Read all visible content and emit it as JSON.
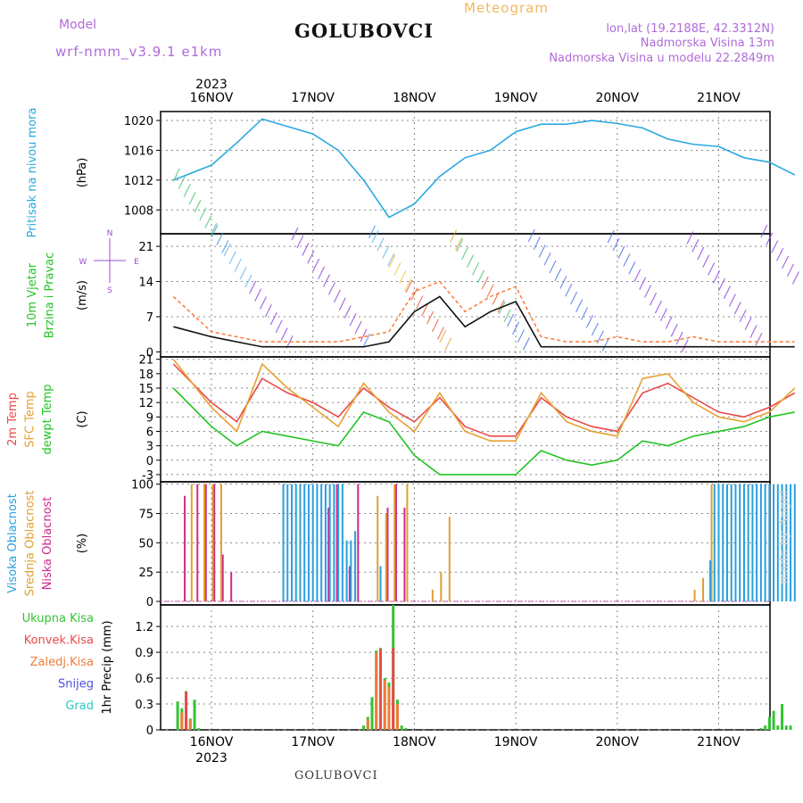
{
  "header": {
    "model_label": "Model",
    "model_name": "wrf-nmm_v3.9.1 e1km",
    "station": "GOLUBOVCI",
    "product": "Meteogram",
    "coords": "lon,lat (19.2188E, 42.3312N)",
    "elevation": "Nadmorska Visina 13m",
    "model_elevation": "Nadmorska Visina u modelu 22.2849m"
  },
  "footer": {
    "station": "GOLUBOVCI",
    "credit": "made by Angel"
  },
  "colors": {
    "pressure": "#2aa9e0",
    "wind_mean": "#111111",
    "wind_gust": "#ff8040",
    "t2m": "#e84a4a",
    "sfc": "#e8a030",
    "dewpt": "#22c422",
    "cloud_high": "#2a9fdc",
    "cloud_mid": "#e0a030",
    "cloud_low": "#d02a8c",
    "precip_total": "#33c433",
    "precip_conv": "#e84a4a",
    "precip_frz": "#f07b3a",
    "precip_snow": "#5050dd",
    "precip_hail": "#30c8c0"
  },
  "chart_data": [
    {
      "type": "line",
      "id": "pressure",
      "ylabel_lines": [
        "Pritisak na nivou mora"
      ],
      "unit": "(hPa)",
      "ylim": [
        1004.8,
        1021.2
      ],
      "yticks": [
        1008,
        1012,
        1016,
        1020
      ],
      "x_day_ticks": [
        "16NOV",
        "17NOV",
        "18NOV",
        "19NOV",
        "20NOV",
        "21NOV"
      ],
      "year": "2023",
      "grid": true,
      "x_hours": [
        -9,
        0,
        6,
        12,
        18,
        24,
        30,
        36,
        42,
        48,
        54,
        60,
        66,
        72,
        78,
        84,
        90,
        96,
        102,
        108,
        114,
        120,
        126,
        132,
        138
      ],
      "series": [
        {
          "key": "pressure",
          "color_key": "pressure",
          "values": [
            1012.0,
            1014.0,
            1017.0,
            1020.2,
            1019.2,
            1018.2,
            1016.0,
            1012.0,
            1007.0,
            1008.8,
            1012.5,
            1015.0,
            1016.0,
            1018.5,
            1019.5,
            1019.5,
            1020.0,
            1019.6,
            1019.0,
            1017.5,
            1016.8,
            1016.5,
            1015.0,
            1014.4,
            1012.7
          ]
        }
      ]
    },
    {
      "type": "line",
      "id": "wind",
      "ylabel_lines": [
        "10m Vjetar",
        "Brzina i Pravac"
      ],
      "unit": "(m/s)",
      "ylim": [
        -1,
        23.5
      ],
      "yticks": [
        0,
        7,
        14,
        21
      ],
      "compass": {
        "n": "N",
        "s": "S",
        "w": "W",
        "e": "E"
      },
      "grid": true,
      "x_hours": [
        -9,
        0,
        6,
        12,
        18,
        24,
        30,
        36,
        42,
        48,
        54,
        60,
        66,
        72,
        78,
        84,
        90,
        96,
        102,
        108,
        114,
        120,
        126,
        132,
        138
      ],
      "series": [
        {
          "key": "wind_speed",
          "color_key": "wind_mean",
          "values": [
            5,
            3,
            2,
            1,
            1,
            1,
            1,
            1,
            2,
            8,
            11,
            5,
            8,
            10,
            1,
            1,
            1,
            1,
            1,
            1,
            1,
            1,
            1,
            1,
            1
          ]
        },
        {
          "key": "wind_gust",
          "color_key": "wind_gust",
          "values": [
            11,
            4,
            3,
            2,
            2,
            2,
            2,
            3,
            4,
            12,
            14,
            8,
            11,
            13,
            3,
            2,
            2,
            3,
            2,
            2,
            3,
            2,
            2,
            2,
            2
          ]
        }
      ]
    },
    {
      "type": "line",
      "id": "temperature",
      "ylabel_lines": [
        "2m Temp",
        "SFC Temp",
        "dewpt Temp"
      ],
      "unit": "(C)",
      "ylim": [
        -4.5,
        21.5
      ],
      "yticks": [
        -3,
        0,
        3,
        6,
        9,
        12,
        15,
        18,
        21
      ],
      "grid": true,
      "x_hours": [
        -9,
        0,
        6,
        12,
        18,
        24,
        30,
        36,
        42,
        48,
        54,
        60,
        66,
        72,
        78,
        84,
        90,
        96,
        102,
        108,
        114,
        120,
        126,
        132,
        138
      ],
      "series": [
        {
          "key": "t2m",
          "color_key": "t2m",
          "values": [
            20,
            12,
            8,
            17,
            14,
            12,
            9,
            15,
            11,
            8,
            13,
            7,
            5,
            5,
            13,
            9,
            7,
            6,
            14,
            16,
            13,
            10,
            9,
            11,
            14
          ]
        },
        {
          "key": "sfc",
          "color_key": "sfc",
          "values": [
            21,
            11,
            6,
            20,
            15,
            11,
            7,
            16,
            10,
            6,
            14,
            6,
            4,
            4,
            14,
            8,
            6,
            5,
            17,
            18,
            12,
            9,
            8,
            10,
            15
          ]
        },
        {
          "key": "dewpt",
          "color_key": "dewpt",
          "values": [
            15,
            7,
            3,
            6,
            5,
            4,
            3,
            10,
            8,
            1,
            -3,
            -3,
            -3,
            -3,
            2,
            0,
            -1,
            0,
            4,
            3,
            5,
            6,
            7,
            9,
            10
          ]
        }
      ]
    },
    {
      "type": "bar",
      "id": "cloud",
      "ylabel_lines": [
        "Visoka Oblacnost",
        "Srednja Oblacnost",
        "Niska Oblacnost"
      ],
      "unit": "(%)",
      "ylim": [
        -3,
        102
      ],
      "yticks": [
        0,
        25,
        50,
        75,
        100
      ],
      "grid": true,
      "series": [
        {
          "key": "low",
          "color_key": "cloud_low",
          "x_hours": [
            -6,
            -3,
            -1,
            1,
            3,
            5,
            28,
            30,
            33,
            35,
            42,
            44,
            46
          ],
          "values": [
            90,
            100,
            100,
            100,
            40,
            25,
            80,
            100,
            30,
            100,
            80,
            100,
            80
          ]
        },
        {
          "key": "mid",
          "color_key": "cloud_mid",
          "x_hours": [
            -5,
            -2,
            0,
            2,
            39,
            41,
            43,
            46,
            52,
            54,
            56,
            114,
            116,
            118
          ],
          "values": [
            100,
            100,
            100,
            100,
            90,
            75,
            100,
            100,
            10,
            25,
            72,
            10,
            20,
            100
          ]
        },
        {
          "key": "high",
          "color_key": "cloud_high",
          "x_hours": [
            17,
            18,
            19,
            20,
            21,
            22,
            23,
            24,
            25,
            26,
            27,
            28,
            29,
            30,
            31,
            32,
            33,
            34,
            40,
            118,
            119,
            120,
            121,
            122,
            123,
            124,
            125,
            126,
            127,
            128,
            129,
            130,
            131,
            132,
            133,
            134,
            135,
            136,
            137,
            138
          ],
          "values": [
            100,
            100,
            100,
            100,
            100,
            100,
            100,
            100,
            100,
            100,
            100,
            100,
            100,
            100,
            100,
            52,
            52,
            60,
            30,
            35,
            100,
            100,
            100,
            100,
            100,
            100,
            100,
            100,
            100,
            100,
            100,
            100,
            100,
            100,
            100,
            100,
            100,
            100,
            100,
            100
          ]
        }
      ]
    },
    {
      "type": "bar",
      "id": "precip",
      "ylabel_lines": [
        "1hr Precip (mm)"
      ],
      "legend": [
        "Ukupna Kisa",
        "Konvek.Kisa",
        "Zaledj.Kisa",
        "Snijeg",
        "Grad"
      ],
      "ylim": [
        0,
        1.45
      ],
      "yticks": [
        0,
        0.3,
        0.6,
        0.9,
        1.2
      ],
      "x_day_ticks": [
        "16NOV",
        "17NOV",
        "18NOV",
        "19NOV",
        "20NOV",
        "21NOV"
      ],
      "year": "2023",
      "grid": true,
      "series": [
        {
          "key": "total",
          "color_key": "precip_total",
          "x_hours": [
            -8,
            -7,
            -6,
            -5,
            -4,
            -3,
            36,
            37,
            38,
            39,
            40,
            41,
            42,
            43,
            44,
            45,
            46,
            130,
            131,
            132,
            133,
            134,
            135,
            136,
            137
          ],
          "values": [
            0.33,
            0.25,
            0.45,
            0.13,
            0.35,
            0.02,
            0.05,
            0.15,
            0.38,
            0.92,
            0.95,
            0.6,
            0.55,
            1.45,
            0.35,
            0.05,
            0.02,
            0.02,
            0.05,
            0.15,
            0.22,
            0.05,
            0.3,
            0.05,
            0.05
          ]
        },
        {
          "key": "conv",
          "color_key": "precip_conv",
          "x_hours": [
            -6,
            40,
            43
          ],
          "values": [
            0.44,
            0.94,
            0.95
          ]
        },
        {
          "key": "frz",
          "color_key": "precip_frz",
          "x_hours": [
            -7,
            -5,
            37,
            39,
            41,
            42,
            44
          ],
          "values": [
            0.2,
            0.12,
            0.12,
            0.9,
            0.58,
            0.5,
            0.3
          ]
        }
      ]
    }
  ]
}
